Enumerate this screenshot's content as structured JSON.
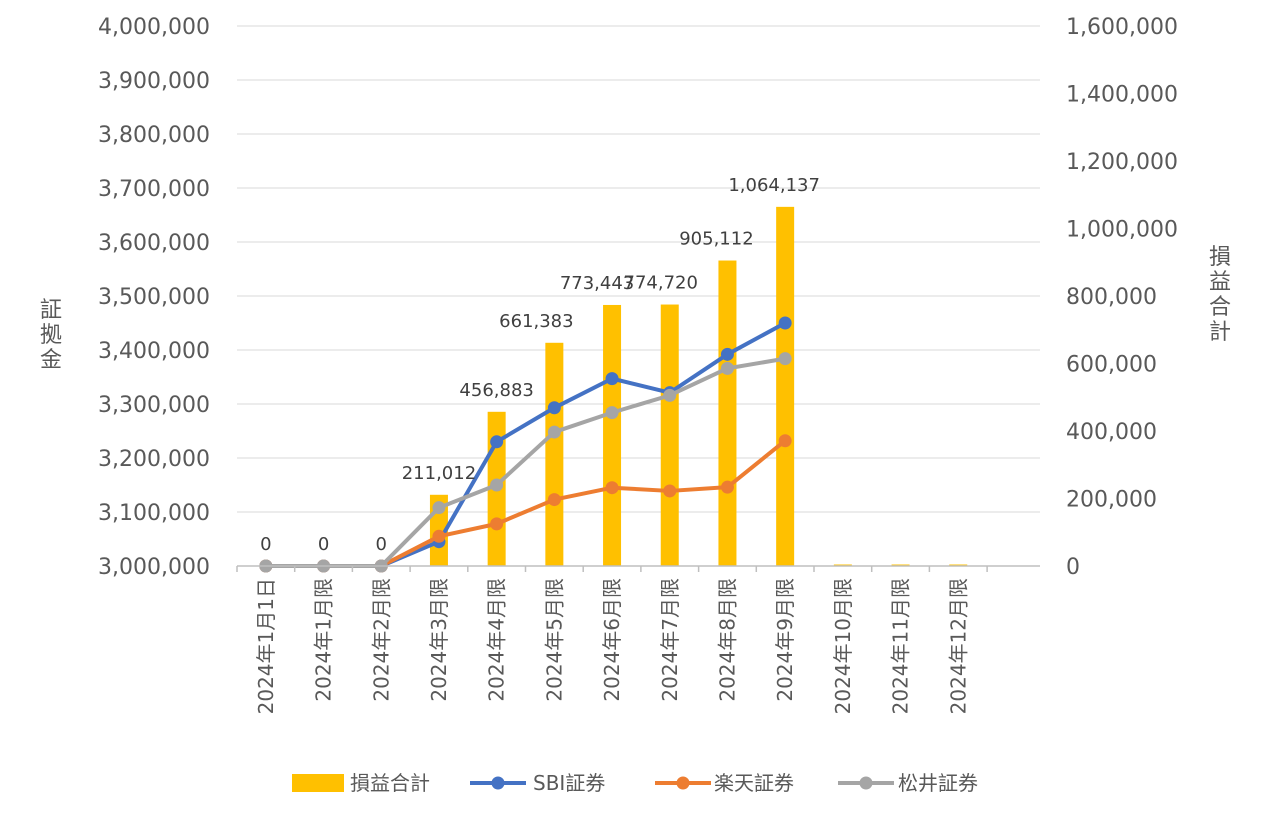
{
  "chart_data": {
    "type": "bar+line",
    "categories": [
      "2024年1月1日",
      "2024年1月限",
      "2024年2月限",
      "2024年3月限",
      "2024年4月限",
      "2024年5月限",
      "2024年6月限",
      "2024年7月限",
      "2024年8月限",
      "2024年9月限",
      "2024年10月限",
      "2024年11月限",
      "2024年12月限"
    ],
    "left_axis": {
      "title": "証拠金",
      "ylim": [
        3000000,
        4000000
      ],
      "ticks": [
        "3,000,000",
        "3,100,000",
        "3,200,000",
        "3,300,000",
        "3,400,000",
        "3,500,000",
        "3,600,000",
        "3,700,000",
        "3,800,000",
        "3,900,000",
        "4,000,000"
      ]
    },
    "right_axis": {
      "title": "損益合計",
      "ylim": [
        0,
        1600000
      ],
      "ticks": [
        "0",
        "200,000",
        "400,000",
        "600,000",
        "800,000",
        "1,000,000",
        "1,200,000",
        "1,400,000",
        "1,600,000"
      ]
    },
    "bar_series": {
      "name": "損益合計",
      "color": "#FFC000",
      "values": [
        0,
        0,
        0,
        211012,
        456883,
        661383,
        773443,
        774720,
        905112,
        1064137,
        0,
        0,
        0
      ],
      "labels": [
        "0",
        "0",
        "0",
        "211,012",
        "456,883",
        "661,383",
        "773,443",
        "774,720",
        "905,112",
        "1,064,137",
        "",
        "",
        ""
      ]
    },
    "line_series": [
      {
        "name": "SBI証券",
        "color": "#4472C4",
        "values": [
          3000000,
          3000000,
          3000000,
          3045000,
          3230000,
          3293000,
          3347000,
          3321000,
          3392000,
          3450000
        ]
      },
      {
        "name": "楽天証券",
        "color": "#ED7D31",
        "values": [
          3000000,
          3000000,
          3000000,
          3055000,
          3078000,
          3123000,
          3145000,
          3139000,
          3146000,
          3232000
        ]
      },
      {
        "name": "松井証券",
        "color": "#A5A5A5",
        "values": [
          3000000,
          3000000,
          3000000,
          3108000,
          3150000,
          3248000,
          3284000,
          3316000,
          3366000,
          3384000
        ]
      }
    ],
    "grid": true,
    "legend_position": "bottom"
  }
}
